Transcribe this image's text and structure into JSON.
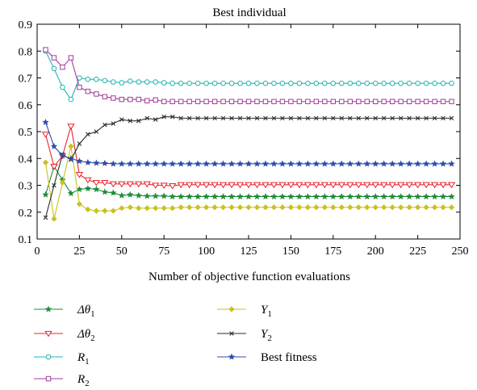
{
  "chart_data": {
    "type": "line",
    "title": "Best individual",
    "xlabel": "Number of objective function evaluations",
    "ylabel": "",
    "xlim": [
      0,
      250
    ],
    "ylim": [
      0.1,
      0.9
    ],
    "x_ticks": [
      "0",
      "25",
      "50",
      "75",
      "100",
      "125",
      "150",
      "175",
      "200",
      "225",
      "250"
    ],
    "y_ticks": [
      "0.1",
      "0.2",
      "0.3",
      "0.4",
      "0.5",
      "0.6",
      "0.7",
      "0.8",
      "0.9"
    ],
    "grid": false,
    "legend_position": "below",
    "x": [
      5,
      10,
      15,
      20,
      25,
      30,
      35,
      40,
      45,
      50,
      55,
      60,
      65,
      70,
      75,
      80,
      85,
      90,
      95,
      100,
      105,
      110,
      115,
      120,
      125,
      130,
      135,
      140,
      145,
      150,
      155,
      160,
      165,
      170,
      175,
      180,
      185,
      190,
      195,
      200,
      205,
      210,
      215,
      220,
      225,
      230,
      235,
      240,
      245
    ],
    "series": [
      {
        "name": "Δθ1",
        "label_base": "Δθ",
        "label_sub": "1",
        "color": "#1e8c3a",
        "marker": "star",
        "values": [
          0.265,
          0.37,
          0.32,
          0.27,
          0.285,
          0.288,
          0.285,
          0.275,
          0.272,
          0.262,
          0.265,
          0.262,
          0.26,
          0.26,
          0.26,
          0.258,
          0.258,
          0.258,
          0.258,
          0.258,
          0.258,
          0.258,
          0.258,
          0.258,
          0.258,
          0.258,
          0.258,
          0.258,
          0.258,
          0.258,
          0.258,
          0.258,
          0.258,
          0.258,
          0.258,
          0.258,
          0.258,
          0.258,
          0.258,
          0.258,
          0.258,
          0.258,
          0.258,
          0.258,
          0.258,
          0.258,
          0.258,
          0.258,
          0.258
        ]
      },
      {
        "name": "Δθ2",
        "label_base": "Δθ",
        "label_sub": "2",
        "color": "#e8242c",
        "marker": "triangle-down",
        "values": [
          0.49,
          0.37,
          0.41,
          0.52,
          0.34,
          0.32,
          0.31,
          0.31,
          0.305,
          0.305,
          0.305,
          0.305,
          0.305,
          0.3,
          0.3,
          0.298,
          0.302,
          0.302,
          0.302,
          0.302,
          0.302,
          0.302,
          0.302,
          0.302,
          0.302,
          0.302,
          0.302,
          0.302,
          0.302,
          0.302,
          0.302,
          0.302,
          0.302,
          0.302,
          0.302,
          0.302,
          0.302,
          0.302,
          0.302,
          0.302,
          0.302,
          0.302,
          0.302,
          0.302,
          0.302,
          0.302,
          0.302,
          0.302,
          0.302
        ]
      },
      {
        "name": "R1",
        "label_base": "R",
        "label_sub": "1",
        "color": "#22b4b0",
        "marker": "circle",
        "values": [
          0.8,
          0.735,
          0.665,
          0.62,
          0.7,
          0.695,
          0.695,
          0.69,
          0.685,
          0.682,
          0.688,
          0.685,
          0.685,
          0.685,
          0.682,
          0.68,
          0.68,
          0.68,
          0.68,
          0.68,
          0.68,
          0.68,
          0.68,
          0.68,
          0.68,
          0.68,
          0.68,
          0.68,
          0.68,
          0.68,
          0.68,
          0.68,
          0.68,
          0.68,
          0.68,
          0.68,
          0.68,
          0.68,
          0.68,
          0.68,
          0.68,
          0.68,
          0.68,
          0.68,
          0.68,
          0.68,
          0.68,
          0.68,
          0.68
        ]
      },
      {
        "name": "R2",
        "label_base": "R",
        "label_sub": "2",
        "color": "#a23c9c",
        "marker": "square",
        "values": [
          0.805,
          0.775,
          0.74,
          0.775,
          0.665,
          0.65,
          0.64,
          0.63,
          0.625,
          0.62,
          0.62,
          0.62,
          0.615,
          0.618,
          0.612,
          0.612,
          0.612,
          0.612,
          0.612,
          0.612,
          0.612,
          0.612,
          0.612,
          0.612,
          0.612,
          0.612,
          0.612,
          0.612,
          0.612,
          0.612,
          0.612,
          0.612,
          0.612,
          0.612,
          0.612,
          0.612,
          0.612,
          0.612,
          0.612,
          0.612,
          0.612,
          0.612,
          0.612,
          0.612,
          0.612,
          0.612,
          0.612,
          0.612,
          0.612
        ]
      },
      {
        "name": "Y1",
        "label_base": "Y",
        "label_sub": "1",
        "color": "#c8c21c",
        "marker": "diamond",
        "values": [
          0.385,
          0.175,
          0.31,
          0.445,
          0.23,
          0.21,
          0.205,
          0.205,
          0.205,
          0.215,
          0.218,
          0.215,
          0.215,
          0.215,
          0.215,
          0.215,
          0.218,
          0.218,
          0.218,
          0.218,
          0.218,
          0.218,
          0.218,
          0.218,
          0.218,
          0.218,
          0.218,
          0.218,
          0.218,
          0.218,
          0.218,
          0.218,
          0.218,
          0.218,
          0.218,
          0.218,
          0.218,
          0.218,
          0.218,
          0.218,
          0.218,
          0.218,
          0.218,
          0.218,
          0.218,
          0.218,
          0.218,
          0.218,
          0.218
        ]
      },
      {
        "name": "Y2",
        "label_base": "Y",
        "label_sub": "2",
        "color": "#2b2b2b",
        "marker": "x",
        "values": [
          0.18,
          0.3,
          0.415,
          0.395,
          0.455,
          0.49,
          0.5,
          0.525,
          0.53,
          0.545,
          0.54,
          0.54,
          0.55,
          0.545,
          0.555,
          0.555,
          0.55,
          0.55,
          0.55,
          0.55,
          0.55,
          0.55,
          0.55,
          0.55,
          0.55,
          0.55,
          0.55,
          0.55,
          0.55,
          0.55,
          0.55,
          0.55,
          0.55,
          0.55,
          0.55,
          0.55,
          0.55,
          0.55,
          0.55,
          0.55,
          0.55,
          0.55,
          0.55,
          0.55,
          0.55,
          0.55,
          0.55,
          0.55,
          0.55
        ]
      },
      {
        "name": "Best fitness",
        "label_base": "Best fitness",
        "label_sub": "",
        "color": "#2c4ca8",
        "marker": "star",
        "values": [
          0.535,
          0.445,
          0.41,
          0.4,
          0.39,
          0.385,
          0.383,
          0.382,
          0.38,
          0.38,
          0.38,
          0.38,
          0.38,
          0.38,
          0.38,
          0.38,
          0.38,
          0.38,
          0.38,
          0.38,
          0.38,
          0.38,
          0.38,
          0.38,
          0.38,
          0.38,
          0.38,
          0.38,
          0.38,
          0.38,
          0.38,
          0.38,
          0.38,
          0.38,
          0.38,
          0.38,
          0.38,
          0.38,
          0.38,
          0.38,
          0.38,
          0.38,
          0.38,
          0.38,
          0.38,
          0.38,
          0.38,
          0.38,
          0.38
        ]
      }
    ]
  }
}
